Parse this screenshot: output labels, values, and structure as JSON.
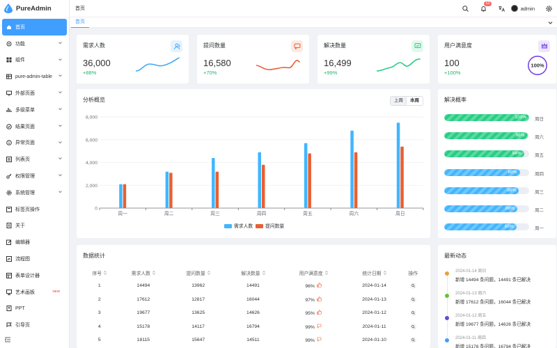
{
  "app": {
    "name": "PureAdmin"
  },
  "sidebar": {
    "items": [
      {
        "label": "首页",
        "icon": "home-icon",
        "active": true,
        "chevron": false
      },
      {
        "label": "功能",
        "icon": "function-icon",
        "chevron": true
      },
      {
        "label": "组件",
        "icon": "grid-icon",
        "chevron": true
      },
      {
        "label": "pure-admin-table",
        "icon": "table-icon",
        "chevron": true
      },
      {
        "label": "外部页面",
        "icon": "monitor-icon",
        "chevron": true
      },
      {
        "label": "多级菜单",
        "icon": "bar-chart-icon",
        "chevron": true
      },
      {
        "label": "结果页面",
        "icon": "check-circle-icon",
        "chevron": true
      },
      {
        "label": "异常页面",
        "icon": "info-circle-icon",
        "chevron": true
      },
      {
        "label": "列表页",
        "icon": "list-icon",
        "chevron": true
      },
      {
        "label": "权限管理",
        "icon": "key-icon",
        "chevron": true
      },
      {
        "label": "系统管理",
        "icon": "gear-icon",
        "chevron": true
      },
      {
        "label": "标签页操作",
        "icon": "tag-icon",
        "chevron": false
      },
      {
        "label": "关于",
        "icon": "document-icon",
        "chevron": false
      },
      {
        "label": "编辑器",
        "icon": "edit-icon",
        "chevron": false
      },
      {
        "label": "流程图",
        "icon": "flow-icon",
        "chevron": false
      },
      {
        "label": "表单设计器",
        "icon": "form-icon",
        "chevron": false
      },
      {
        "label": "艺术画板",
        "icon": "board-icon",
        "chevron": false,
        "badge": "NEW"
      },
      {
        "label": "PPT",
        "icon": "ppt-icon",
        "chevron": false
      },
      {
        "label": "引导页",
        "icon": "guide-icon",
        "chevron": false
      }
    ]
  },
  "header": {
    "breadcrumb": "首页",
    "notification_count": "13",
    "username": "admin"
  },
  "tabs": [
    {
      "label": "首页"
    }
  ],
  "stats": [
    {
      "title": "需求人数",
      "value": "36,000",
      "percent": "+88%",
      "color": "#41a8f5",
      "icon": "users-icon"
    },
    {
      "title": "提问数量",
      "value": "16,580",
      "percent": "+70%",
      "color": "#e85f33",
      "icon": "chat-icon"
    },
    {
      "title": "解决数量",
      "value": "16,499",
      "percent": "+99%",
      "color": "#26ce83",
      "icon": "message-check-icon"
    },
    {
      "title": "用户满意度",
      "value": "100",
      "percent": "+100%",
      "color": "#7846e5",
      "icon": "crown-icon",
      "ring_label": "100%"
    }
  ],
  "analysis": {
    "title": "分析概览",
    "toggle": [
      "上周",
      "本周"
    ],
    "selected": "本周"
  },
  "chart_data": {
    "type": "bar",
    "categories": [
      "周一",
      "周二",
      "周三",
      "周四",
      "周五",
      "周六",
      "周日"
    ],
    "series": [
      {
        "name": "需求人数",
        "color": "#41b6ff",
        "values": [
          2100,
          3200,
          4400,
          4900,
          5700,
          6800,
          7500
        ]
      },
      {
        "name": "提问数量",
        "color": "#e86033",
        "values": [
          2100,
          3100,
          3200,
          3800,
          4800,
          4900,
          5400
        ]
      }
    ],
    "ylim": [
      0,
      8000
    ],
    "yticks": [
      "0",
      "2,000",
      "4,000",
      "6,000",
      "8,000"
    ],
    "legend": "bottom-center"
  },
  "solve_rate": {
    "title": "解决概率",
    "items": [
      {
        "percent": 100,
        "label": "100%",
        "day": "周日",
        "color": "#26ce83"
      },
      {
        "percent": 98,
        "label": "98%",
        "day": "周六",
        "color": "#26ce83"
      },
      {
        "percent": 94,
        "label": "94%",
        "day": "周五",
        "color": "#26ce83"
      },
      {
        "percent": 89,
        "label": "89%",
        "day": "周四",
        "color": "#41b6ff"
      },
      {
        "percent": 88,
        "label": "88%",
        "day": "周三",
        "color": "#41b6ff"
      },
      {
        "percent": 86,
        "label": "86%",
        "day": "周二",
        "color": "#41b6ff"
      },
      {
        "percent": 85,
        "label": "85%",
        "day": "周一",
        "color": "#41b6ff"
      }
    ]
  },
  "table": {
    "title": "数据统计",
    "columns": [
      "序号",
      "需求人数",
      "提问数量",
      "解决数量",
      "用户满意度",
      "统计日期",
      "操作"
    ],
    "rows": [
      {
        "id": "1",
        "demand": "14494",
        "questions": "13962",
        "solved": "14491",
        "satisfaction": "96%",
        "date": "2024-01-14"
      },
      {
        "id": "2",
        "demand": "17612",
        "questions": "12817",
        "solved": "16044",
        "satisfaction": "97%",
        "date": "2024-01-13"
      },
      {
        "id": "3",
        "demand": "19677",
        "questions": "13625",
        "solved": "14626",
        "satisfaction": "95%",
        "date": "2024-01-12"
      },
      {
        "id": "4",
        "demand": "15178",
        "questions": "14117",
        "solved": "16794",
        "satisfaction": "99%",
        "date": "2024-01-11"
      },
      {
        "id": "5",
        "demand": "18115",
        "questions": "15647",
        "solved": "14511",
        "satisfaction": "99%",
        "date": "2024-01-10"
      }
    ]
  },
  "news": {
    "title": "最新动态",
    "items": [
      {
        "date": "2024-01-14 周日",
        "text": "新增 14494 条问题，14491 条已解决",
        "color": "#e6a23c"
      },
      {
        "date": "2024-01-13 周六",
        "text": "新增 17612 条问题，16044 条已解决",
        "color": "#67c23a"
      },
      {
        "date": "2024-01-12 周五",
        "text": "新增 19677 条问题，14626 条已解决",
        "color": "#5b4fd6"
      },
      {
        "date": "2024-01-11 周四",
        "text": "新增 15178 条问题，16794 条已解决",
        "color": "#409eff"
      }
    ]
  }
}
